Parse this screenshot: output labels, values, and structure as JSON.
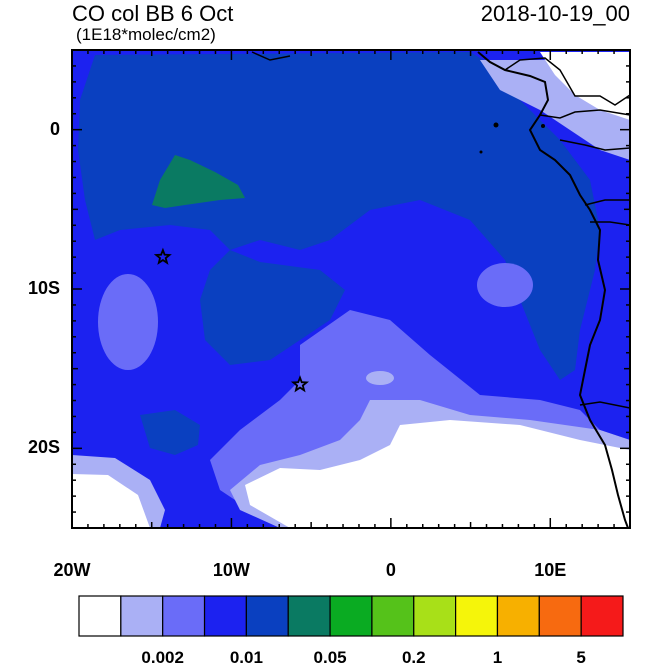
{
  "header": {
    "title": "CO col BB 6 Oct",
    "units": "(1E18*molec/cm2)",
    "timestamp": "2018-10-19_00"
  },
  "map": {
    "lat_ticks": [
      {
        "label": "0",
        "value": 0
      },
      {
        "label": "10S",
        "value": -10
      },
      {
        "label": "20S",
        "value": -20
      }
    ],
    "lon_ticks": [
      {
        "label": "20W",
        "value": -20
      },
      {
        "label": "10W",
        "value": -10
      },
      {
        "label": "0",
        "value": 0
      },
      {
        "label": "10E",
        "value": 10
      }
    ],
    "extent": {
      "lon_min": -20,
      "lon_max": 15,
      "lat_min": -25,
      "lat_max": 5
    },
    "markers": [
      {
        "name": "star",
        "lon": -14.3,
        "lat": -8.0
      },
      {
        "name": "star",
        "lon": -5.7,
        "lat": -16.0
      }
    ]
  },
  "colorbar": {
    "colors": [
      "#ffffff",
      "#aab0f5",
      "#6a6cf8",
      "#1c22f0",
      "#0a40c0",
      "#0a7a62",
      "#0aab22",
      "#55c21a",
      "#a8e018",
      "#f5f50a",
      "#f7b000",
      "#f76a10",
      "#f51a1a"
    ],
    "labels": [
      "0.002",
      "0.01",
      "0.05",
      "0.2",
      "1",
      "5"
    ]
  },
  "colors": {
    "ocean_base": "#1c22f0",
    "dark_blue": "#0a40c0",
    "teal": "#0a7a62",
    "light_blue": "#6a6cf8",
    "pale_blue": "#aab0f5",
    "white": "#ffffff"
  }
}
